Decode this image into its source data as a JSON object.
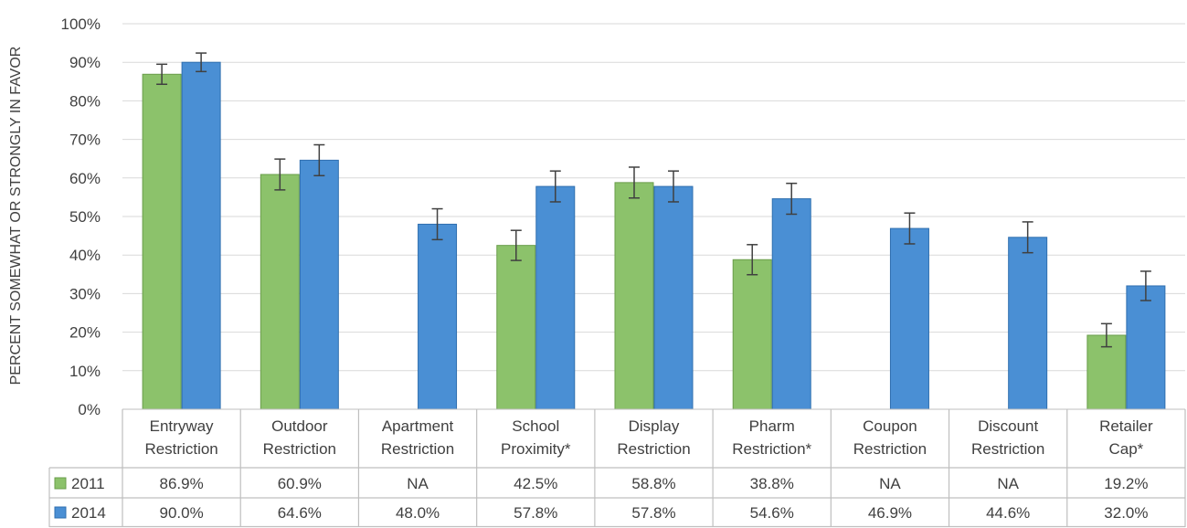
{
  "chart_data": {
    "type": "bar",
    "ylabel": "PERCENT SOMEWHAT OR  STRONGLY IN FAVOR",
    "ylim": [
      0,
      100
    ],
    "yticks": [
      "0%",
      "10%",
      "20%",
      "30%",
      "40%",
      "50%",
      "60%",
      "70%",
      "80%",
      "90%",
      "100%"
    ],
    "grid": true,
    "categories": [
      [
        "Entryway",
        "Restriction"
      ],
      [
        "Outdoor",
        "Restriction"
      ],
      [
        "Apartment",
        "Restriction"
      ],
      [
        "School",
        "Proximity*"
      ],
      [
        "Display",
        "Restriction"
      ],
      [
        "Pharm",
        "Restriction*"
      ],
      [
        "Coupon",
        "Restriction"
      ],
      [
        "Discount",
        "Restriction"
      ],
      [
        "Retailer",
        "Cap*"
      ]
    ],
    "series": [
      {
        "name": "2011",
        "color": "#8cc26b",
        "stroke": "#6a9d4b",
        "values": [
          86.9,
          60.9,
          null,
          42.5,
          58.8,
          38.8,
          null,
          null,
          19.2
        ],
        "err_low": [
          84.3,
          56.9,
          null,
          38.6,
          54.8,
          34.9,
          null,
          null,
          16.2
        ],
        "err_high": [
          89.5,
          64.9,
          null,
          46.4,
          62.8,
          42.7,
          null,
          null,
          22.2
        ],
        "labels": [
          "86.9%",
          "60.9%",
          "NA",
          "42.5%",
          "58.8%",
          "38.8%",
          "NA",
          "NA",
          "19.2%"
        ]
      },
      {
        "name": "2014",
        "color": "#4a8fd4",
        "stroke": "#2f6faf",
        "values": [
          90.0,
          64.6,
          48.0,
          57.8,
          57.8,
          54.6,
          46.9,
          44.6,
          32.0
        ],
        "err_low": [
          87.6,
          60.6,
          44.0,
          53.8,
          53.8,
          50.6,
          42.9,
          40.6,
          28.2
        ],
        "err_high": [
          92.4,
          68.6,
          52.0,
          61.8,
          61.8,
          58.6,
          50.9,
          48.6,
          35.8
        ],
        "labels": [
          "90.0%",
          "64.6%",
          "48.0%",
          "57.8%",
          "57.8%",
          "54.6%",
          "46.9%",
          "44.6%",
          "32.0%"
        ]
      }
    ]
  }
}
